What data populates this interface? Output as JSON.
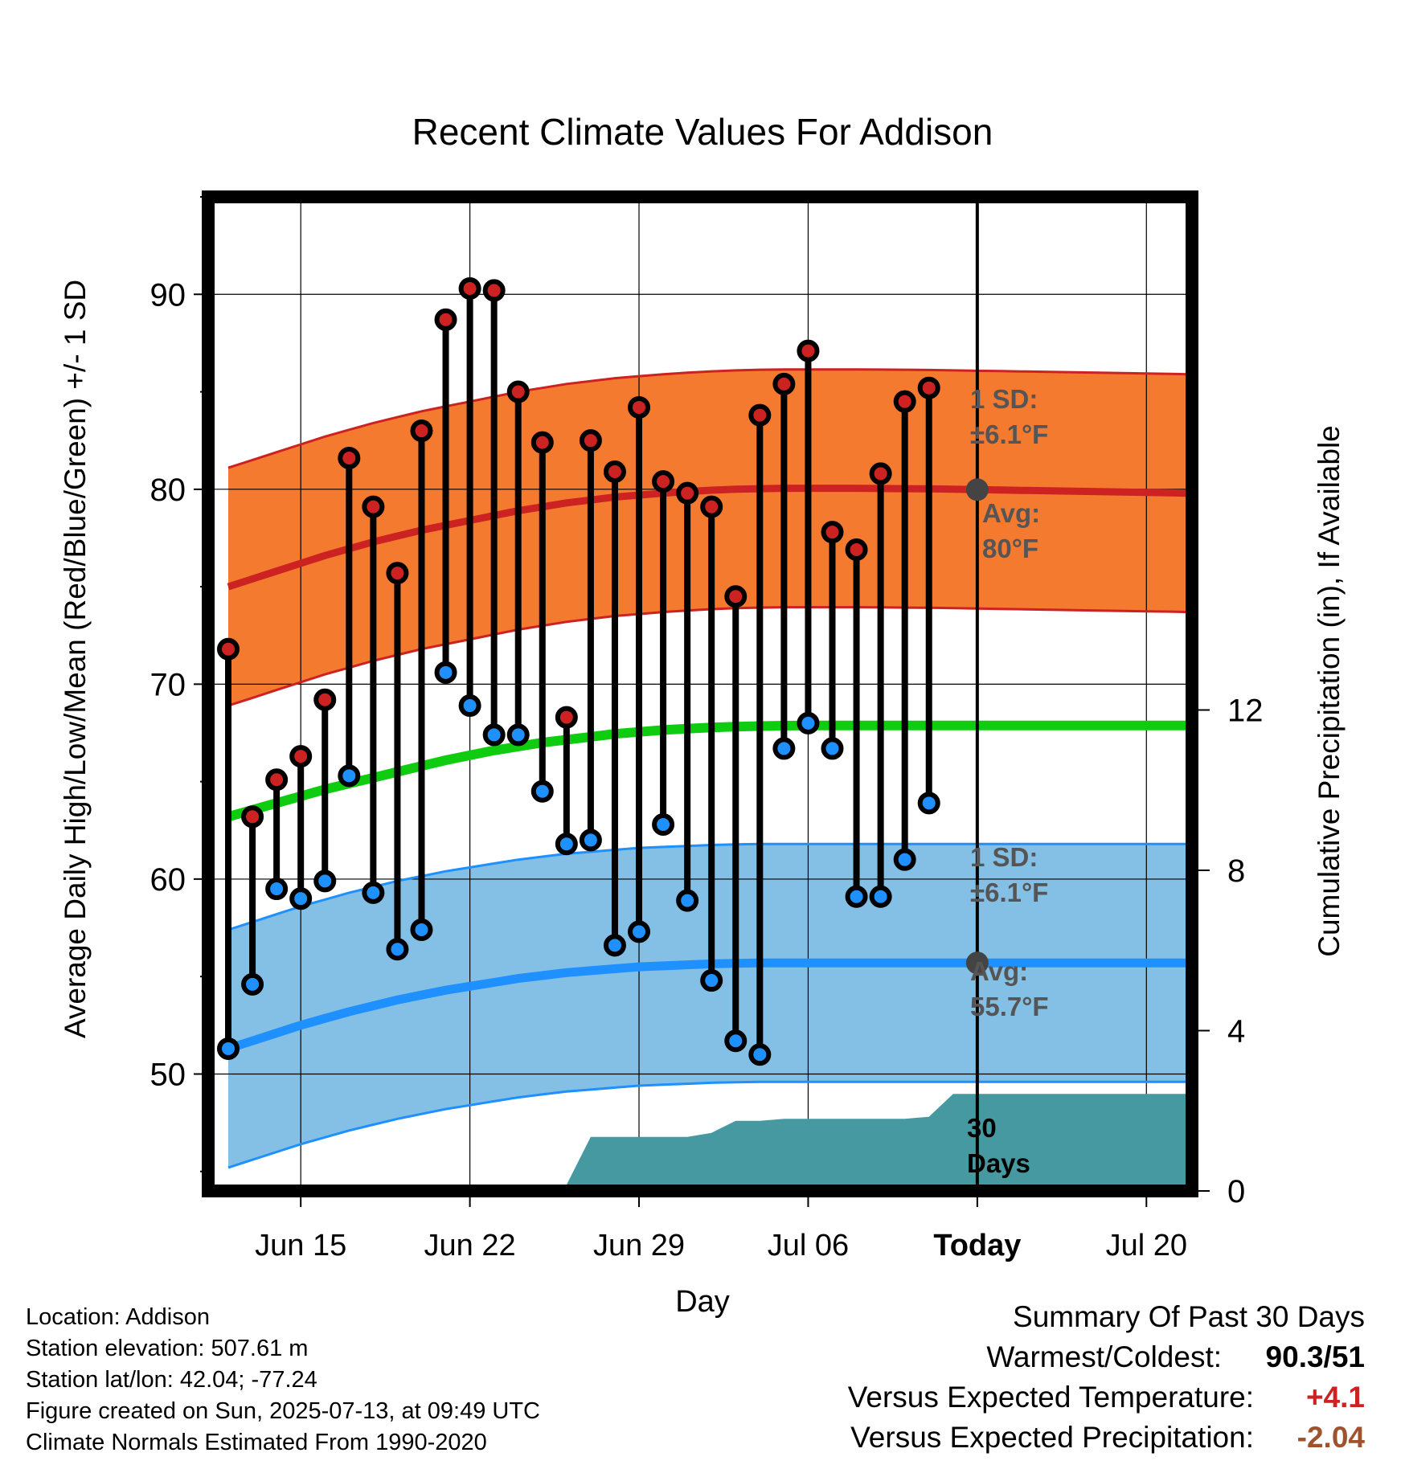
{
  "chart_data": {
    "type": "line",
    "title": "Recent Climate Values For Addison",
    "xlabel": "Day",
    "ylabel": "Average Daily High/Low/Mean (Red/Blue/Green) +/- 1 SD",
    "y2label": "Cumulative Precipitation (in), If Available",
    "ylim": [
      44,
      95
    ],
    "y2lim": [
      0,
      24.8
    ],
    "x_ticks": [
      "Jun 15",
      "Jun 22",
      "Jun 29",
      "Jul 06",
      "Today",
      "Jul 20"
    ],
    "y_ticks": [
      50,
      60,
      70,
      80,
      90
    ],
    "y2_ticks": [
      0,
      4,
      8,
      12
    ],
    "grid": true,
    "dates": [
      "Jun 12",
      "Jun 13",
      "Jun 14",
      "Jun 15",
      "Jun 16",
      "Jun 17",
      "Jun 18",
      "Jun 19",
      "Jun 20",
      "Jun 21",
      "Jun 22",
      "Jun 23",
      "Jun 24",
      "Jun 25",
      "Jun 26",
      "Jun 27",
      "Jun 28",
      "Jun 29",
      "Jun 30",
      "Jul 01",
      "Jul 02",
      "Jul 03",
      "Jul 04",
      "Jul 05",
      "Jul 06",
      "Jul 07",
      "Jul 08",
      "Jul 09",
      "Jul 10",
      "Jul 11",
      "Jul 12",
      "Jul 13",
      "Jul 14",
      "Jul 15",
      "Jul 16",
      "Jul 17",
      "Jul 18",
      "Jul 19",
      "Jul 20",
      "Jul 21",
      "Jul 22"
    ],
    "daily_high": [
      71.8,
      63.2,
      65.1,
      66.3,
      69.2,
      81.6,
      79.1,
      75.7,
      83.0,
      88.7,
      90.3,
      90.2,
      85.0,
      82.4,
      68.3,
      82.5,
      80.9,
      84.2,
      80.4,
      79.8,
      79.1,
      74.5,
      83.8,
      85.4,
      87.1,
      77.8,
      76.9,
      80.8,
      84.5,
      85.2
    ],
    "daily_low": [
      51.3,
      54.6,
      59.5,
      59.0,
      59.9,
      65.3,
      59.3,
      56.4,
      57.4,
      70.6,
      68.9,
      67.4,
      67.4,
      64.5,
      61.8,
      62.0,
      56.6,
      57.3,
      62.8,
      58.9,
      54.8,
      51.7,
      51.0,
      66.7,
      68.0,
      66.7,
      59.1,
      59.1,
      61.0,
      63.9
    ],
    "normal_high": [
      75.0,
      75.4,
      75.8,
      76.2,
      76.6,
      76.95,
      77.3,
      77.6,
      77.9,
      78.15,
      78.4,
      78.65,
      78.9,
      79.1,
      79.3,
      79.45,
      79.6,
      79.7,
      79.8,
      79.88,
      79.95,
      80.0,
      80.03,
      80.05,
      80.05,
      80.05,
      80.05,
      80.04,
      80.03,
      80.02,
      80.0,
      79.98,
      79.96,
      79.94,
      79.92,
      79.9,
      79.88,
      79.86,
      79.84,
      79.82,
      79.8
    ],
    "normal_low": [
      51.3,
      51.7,
      52.1,
      52.5,
      52.85,
      53.2,
      53.5,
      53.8,
      54.05,
      54.3,
      54.5,
      54.7,
      54.9,
      55.05,
      55.2,
      55.3,
      55.4,
      55.5,
      55.55,
      55.6,
      55.65,
      55.68,
      55.7,
      55.7,
      55.7,
      55.7,
      55.7,
      55.7,
      55.7,
      55.7,
      55.7,
      55.7,
      55.7,
      55.7,
      55.7,
      55.7,
      55.7,
      55.7,
      55.7,
      55.7,
      55.7
    ],
    "normal_mean": [
      63.2,
      63.55,
      63.9,
      64.25,
      64.6,
      64.9,
      65.2,
      65.5,
      65.8,
      66.1,
      66.35,
      66.6,
      66.8,
      67.0,
      67.15,
      67.3,
      67.45,
      67.55,
      67.65,
      67.72,
      67.78,
      67.82,
      67.85,
      67.87,
      67.88,
      67.88,
      67.88,
      67.88,
      67.88,
      67.88,
      67.88,
      67.88,
      67.88,
      67.88,
      67.88,
      67.88,
      67.88,
      67.88,
      67.88,
      67.88,
      67.88
    ],
    "high_sd": 6.1,
    "low_sd": 6.1,
    "cumulative_precip": [
      0,
      0,
      0,
      0,
      0.03,
      0.05,
      0.1,
      0.15,
      0.15,
      0.15,
      0.15,
      0.15,
      0.15,
      0.15,
      0.15,
      1.35,
      1.35,
      1.35,
      1.35,
      1.35,
      1.45,
      1.75,
      1.75,
      1.8,
      1.8,
      1.8,
      1.8,
      1.8,
      1.8,
      1.85,
      2.42,
      2.42,
      2.42,
      2.42,
      2.42,
      2.42,
      2.42,
      2.42,
      2.42,
      2.42,
      2.42
    ],
    "annotations": {
      "high_sd_title": "1 SD:",
      "high_sd_value": "±6.1°F",
      "high_avg_title": "Avg:",
      "high_avg_value": "80°F",
      "low_sd_title": "1 SD:",
      "low_sd_value": "±6.1°F",
      "low_avg_title": "Avg:",
      "low_avg_value": "55.7°F",
      "precip_days_1": "30",
      "precip_days_2": "Days"
    },
    "colors": {
      "high_band": "#f47a30",
      "high_line": "#cc2222",
      "low_band": "#84c0e6",
      "low_line": "#1e90ff",
      "low_edge": "#1e90ff",
      "mean_line": "#10cc10",
      "precip": "#4699a0",
      "high_dot": "#cc2222",
      "low_dot": "#1e90ff",
      "annotation": "#555555",
      "avg_marker": "#444444"
    }
  },
  "info": {
    "location": "Location: Addison",
    "elevation": "Station elevation: 507.61 m",
    "latlon": "Station lat/lon: 42.04; -77.24",
    "created": "Figure created on Sun, 2025-07-13, at 09:49 UTC",
    "normals": "Climate Normals Estimated From 1990-2020"
  },
  "summary": {
    "title": "Summary Of Past 30 Days",
    "warmest_label": "Warmest/Coldest:",
    "warmest_value": "90.3/51",
    "temp_label": "Versus Expected Temperature:",
    "temp_value": "+4.1",
    "temp_color": "#cc2222",
    "precip_label": "Versus Expected Precipitation:",
    "precip_value": "-2.04",
    "precip_color": "#a0522d"
  }
}
